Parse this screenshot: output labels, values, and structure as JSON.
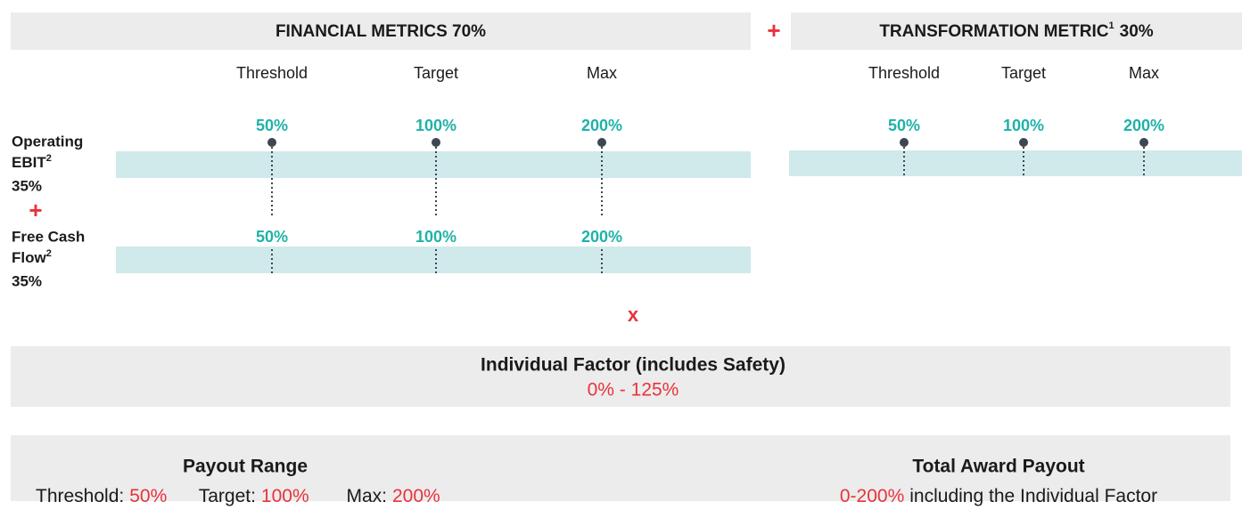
{
  "financial": {
    "title": "FINANCIAL METRICS 70%",
    "columns": [
      "Threshold",
      "Target",
      "Max"
    ],
    "metrics": [
      {
        "name_lines": [
          "Operating",
          "EBIT"
        ],
        "sup": "2",
        "weight": "35%",
        "levels": [
          "50%",
          "100%",
          "200%"
        ]
      },
      {
        "name_lines": [
          "Free Cash",
          "Flow"
        ],
        "sup": "2",
        "weight": "35%",
        "levels": [
          "50%",
          "100%",
          "200%"
        ]
      }
    ]
  },
  "plus": "+",
  "times": "x",
  "transformation": {
    "title": "TRANSFORMATION METRIC",
    "sup": "1",
    "weight": "30%",
    "columns": [
      "Threshold",
      "Target",
      "Max"
    ],
    "levels": [
      "50%",
      "100%",
      "200%"
    ]
  },
  "individual": {
    "title": "Individual Factor (includes Safety)",
    "range": "0% - 125%"
  },
  "payout": {
    "title": "Payout Range",
    "items": [
      {
        "label": "Threshold:",
        "value": "50%"
      },
      {
        "label": "Target:",
        "value": "100%"
      },
      {
        "label": "Max:",
        "value": "200%"
      }
    ]
  },
  "total": {
    "title": "Total Award Payout",
    "value": "0-200%",
    "text": "including the Individual Factor"
  }
}
